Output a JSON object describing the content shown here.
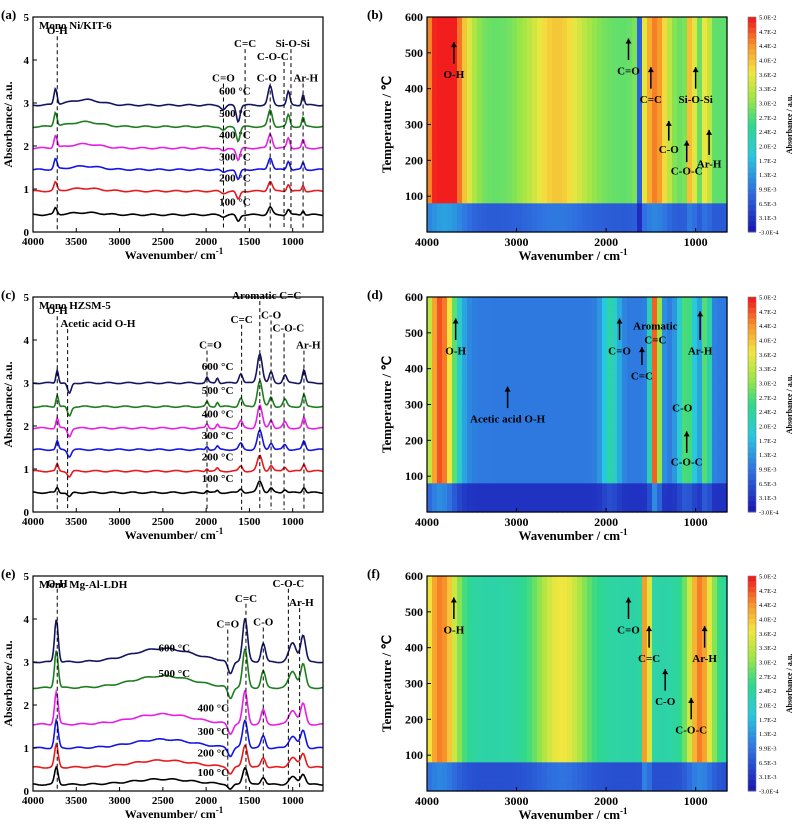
{
  "chart_data": [
    {
      "type": "line",
      "panel_label": "(a)",
      "title": "Mono Ni/KIT-6",
      "xlabel": "Wavenumber/ cm",
      "xlabel_sup": "-1",
      "ylabel": "Absorbance/ a.u.",
      "xlim": [
        4000,
        650
      ],
      "ylim": [
        0,
        5
      ],
      "x_reversed": true,
      "xticks": [
        4000,
        3500,
        3000,
        2500,
        2000,
        1500,
        1000
      ],
      "yticks": [
        0,
        1,
        2,
        3,
        4,
        5
      ],
      "series": [
        {
          "name": "100 °C",
          "color": "#000000",
          "offset": 0.4,
          "label_x": 1850,
          "label_y": 0.62
        },
        {
          "name": "200 °C",
          "color": "#e8191c",
          "offset": 0.95,
          "label_x": 1850,
          "label_y": 1.18
        },
        {
          "name": "300 °C",
          "color": "#1414e6",
          "offset": 1.45,
          "label_x": 1850,
          "label_y": 1.66
        },
        {
          "name": "400 °C",
          "color": "#e61ee6",
          "offset": 1.95,
          "label_x": 1850,
          "label_y": 2.18
        },
        {
          "name": "500 °C",
          "color": "#1e7d1e",
          "offset": 2.45,
          "label_x": 1850,
          "label_y": 2.68
        },
        {
          "name": "600 °C",
          "color": "#14145f",
          "offset": 2.95,
          "label_x": 1850,
          "label_y": 3.2
        }
      ],
      "features": [
        {
          "pos": 3740,
          "h": 0.3,
          "w": 25
        },
        {
          "pos": 3400,
          "h": 0.1,
          "w": 250
        },
        {
          "pos": 1800,
          "h": -0.08,
          "w": 40
        },
        {
          "pos": 1630,
          "h": -0.3,
          "w": 30
        },
        {
          "pos": 1260,
          "h": 0.35,
          "w": 35
        },
        {
          "pos": 1050,
          "h": 0.25,
          "w": 25
        },
        {
          "pos": 880,
          "h": 0.2,
          "w": 20
        }
      ],
      "annotations": [
        {
          "text": "O-H",
          "x": 3720,
          "y": 4.6,
          "line_x": 3720
        },
        {
          "text": "C=O",
          "x": 1800,
          "y": 3.5,
          "line_x": 1800
        },
        {
          "text": "C=C",
          "x": 1550,
          "y": 4.3,
          "line_x": 1550
        },
        {
          "text": "C-O-C",
          "x": 1230,
          "y": 4.0,
          "line_x": 1100
        },
        {
          "text": "C-O",
          "x": 1300,
          "y": 3.5,
          "line_x": 1260
        },
        {
          "text": "Si-O-Si",
          "x": 1000,
          "y": 4.3,
          "line_x": 1020
        },
        {
          "text": "Ar-H",
          "x": 850,
          "y": 3.5,
          "line_x": 880
        }
      ]
    },
    {
      "type": "line",
      "panel_label": "(c)",
      "title": "Mono HZSM-5",
      "xlabel": "Wavenumber/ cm",
      "xlabel_sup": "-1",
      "ylabel": "Absorbance/ a.u.",
      "xlim": [
        4000,
        650
      ],
      "ylim": [
        0,
        5
      ],
      "x_reversed": true,
      "xticks": [
        4000,
        3500,
        3000,
        2500,
        2000,
        1500,
        1000
      ],
      "yticks": [
        0,
        1,
        2,
        3,
        4,
        5
      ],
      "series": [
        {
          "name": "100 °C",
          "color": "#000000",
          "offset": 0.45,
          "label_x": 2050,
          "label_y": 0.7
        },
        {
          "name": "200 °C",
          "color": "#e8191c",
          "offset": 0.95,
          "label_x": 2050,
          "label_y": 1.2
        },
        {
          "name": "300 °C",
          "color": "#1414e6",
          "offset": 1.45,
          "label_x": 2050,
          "label_y": 1.7
        },
        {
          "name": "400 °C",
          "color": "#e61ee6",
          "offset": 1.95,
          "label_x": 2050,
          "label_y": 2.2
        },
        {
          "name": "500 °C",
          "color": "#1e7d1e",
          "offset": 2.45,
          "label_x": 2050,
          "label_y": 2.75
        },
        {
          "name": "600 °C",
          "color": "#14145f",
          "offset": 3.0,
          "label_x": 2050,
          "label_y": 3.3
        }
      ],
      "features": [
        {
          "pos": 3720,
          "h": 0.25,
          "w": 20
        },
        {
          "pos": 3580,
          "h": -0.2,
          "w": 30
        },
        {
          "pos": 1990,
          "h": 0.1,
          "w": 20
        },
        {
          "pos": 1870,
          "h": 0.1,
          "w": 20
        },
        {
          "pos": 1600,
          "h": 0.18,
          "w": 30
        },
        {
          "pos": 1380,
          "h": 0.55,
          "w": 40
        },
        {
          "pos": 1250,
          "h": 0.2,
          "w": 30
        },
        {
          "pos": 1090,
          "h": 0.15,
          "w": 30
        },
        {
          "pos": 870,
          "h": 0.25,
          "w": 25
        }
      ],
      "annotations": [
        {
          "text": "O-H",
          "x": 3720,
          "y": 4.6,
          "line_x": 3720
        },
        {
          "text": "Acetic acid O-H",
          "x": 3250,
          "y": 4.3,
          "line_x": 3600
        },
        {
          "text": "C=O",
          "x": 1950,
          "y": 3.8,
          "line_x": 1990
        },
        {
          "text": "C=C",
          "x": 1590,
          "y": 4.4,
          "line_x": 1590
        },
        {
          "text": "Aromatic C=C",
          "x": 1300,
          "y": 4.95,
          "line_x": 1380
        },
        {
          "text": "C-O",
          "x": 1250,
          "y": 4.5,
          "line_x": 1250
        },
        {
          "text": "C-O-C",
          "x": 1050,
          "y": 4.2,
          "line_x": 1100
        },
        {
          "text": "Ar-H",
          "x": 820,
          "y": 3.8,
          "line_x": 870
        }
      ]
    },
    {
      "type": "line",
      "panel_label": "(e)",
      "title": "Mono Mg-Al-LDH",
      "xlabel": "Wavenumber/ cm",
      "xlabel_sup": "-1",
      "ylabel": "Absorbance/ a.u.",
      "xlim": [
        4000,
        650
      ],
      "ylim": [
        0,
        5
      ],
      "x_reversed": true,
      "xticks": [
        4000,
        3500,
        3000,
        2500,
        2000,
        1500,
        1000
      ],
      "yticks": [
        0,
        1,
        2,
        3,
        4,
        5
      ],
      "series": [
        {
          "name": "100 °C",
          "color": "#000000",
          "offset": 0.15,
          "label_x": 2100,
          "label_y": 0.35
        },
        {
          "name": "200 °C",
          "color": "#e8191c",
          "offset": 0.55,
          "label_x": 2100,
          "label_y": 0.8
        },
        {
          "name": "300 °C",
          "color": "#1414e6",
          "offset": 1.0,
          "label_x": 2100,
          "label_y": 1.3
        },
        {
          "name": "400 °C",
          "color": "#e61ee6",
          "offset": 1.55,
          "label_x": 2100,
          "label_y": 1.85
        },
        {
          "name": "500 °C",
          "color": "#1e7d1e",
          "offset": 2.4,
          "label_x": 2550,
          "label_y": 2.65
        },
        {
          "name": "600 °C",
          "color": "#14145f",
          "offset": 3.0,
          "label_x": 2550,
          "label_y": 3.25
        }
      ],
      "features": [
        {
          "pos": 3730,
          "h": 0.8,
          "w": 30
        },
        {
          "pos": 2500,
          "h": 0.25,
          "w": 500
        },
        {
          "pos": 1720,
          "h": -0.25,
          "w": 40
        },
        {
          "pos": 1550,
          "h": 0.8,
          "w": 40
        },
        {
          "pos": 1340,
          "h": 0.35,
          "w": 35
        },
        {
          "pos": 1000,
          "h": 0.35,
          "w": 60
        },
        {
          "pos": 880,
          "h": 0.5,
          "w": 40
        }
      ],
      "annotations": [
        {
          "text": "O-H",
          "x": 3720,
          "y": 4.75,
          "line_x": 3720
        },
        {
          "text": "C=O",
          "x": 1750,
          "y": 3.8,
          "line_x": 1750
        },
        {
          "text": "C=C",
          "x": 1540,
          "y": 4.4,
          "line_x": 1540
        },
        {
          "text": "C-O",
          "x": 1340,
          "y": 3.85,
          "line_x": 1340
        },
        {
          "text": "C-O-C",
          "x": 1050,
          "y": 4.75,
          "line_x": 1050
        },
        {
          "text": "Ar-H",
          "x": 900,
          "y": 4.3,
          "line_x": 920
        }
      ]
    },
    {
      "type": "heatmap",
      "panel_label": "(b)",
      "xlabel": "Wavenumber / cm",
      "xlabel_sup": "-1",
      "ylabel": "Temperature / ℃",
      "xlim": [
        4000,
        650
      ],
      "ylim": [
        0,
        600
      ],
      "x_reversed": true,
      "xticks": [
        4000,
        3000,
        2000,
        1000
      ],
      "yticks": [
        100,
        200,
        300,
        400,
        500,
        600
      ],
      "colorbar_label": "Absorbance / a.u.",
      "colorbar_ticks": [
        "5.0E-2",
        "4.7E-2",
        "4.4E-2",
        "4.0E-2",
        "3.6E-2",
        "3.3E-2",
        "3.0E-2",
        "2.7E-2",
        "2.4E-2",
        "2.0E-2",
        "1.7E-2",
        "1.3E-2",
        "9.9E-3",
        "6.5E-3",
        "3.1E-3",
        "-3.0E-4"
      ],
      "annotations": [
        {
          "text": "O-H",
          "x": 3700,
          "y": 430,
          "arrow_from": 470,
          "arrow_to": 530
        },
        {
          "text": "C=O",
          "x": 1750,
          "y": 440,
          "arrow_from": 480,
          "arrow_to": 540
        },
        {
          "text": "C=C",
          "x": 1500,
          "y": 360,
          "arrow_from": 400,
          "arrow_to": 460
        },
        {
          "text": "Si-O-Si",
          "x": 1000,
          "y": 360,
          "arrow_from": 400,
          "arrow_to": 460
        },
        {
          "text": "C-O",
          "x": 1300,
          "y": 220,
          "arrow_from": 255,
          "arrow_to": 310
        },
        {
          "text": "Ar-H",
          "x": 850,
          "y": 180,
          "arrow_from": 215,
          "arrow_to": 285
        },
        {
          "text": "C-O-C",
          "x": 1100,
          "y": 160,
          "arrow_from": 195,
          "arrow_to": 255
        }
      ]
    },
    {
      "type": "heatmap",
      "panel_label": "(d)",
      "xlabel": "Wavenumber / cm",
      "xlabel_sup": "-1",
      "ylabel": "Temperature / ℃",
      "xlim": [
        4000,
        650
      ],
      "ylim": [
        0,
        600
      ],
      "x_reversed": true,
      "xticks": [
        4000,
        3000,
        2000,
        1000
      ],
      "yticks": [
        100,
        200,
        300,
        400,
        500,
        600
      ],
      "colorbar_label": "Absorbance / a.u.",
      "colorbar_ticks": [
        "5.0E-2",
        "4.7E-2",
        "4.4E-2",
        "4.0E-2",
        "3.6E-2",
        "3.3E-2",
        "3.0E-2",
        "2.7E-2",
        "2.4E-2",
        "2.0E-2",
        "1.7E-2",
        "1.3E-2",
        "9.9E-3",
        "6.5E-3",
        "3.1E-3",
        "-3.0E-4"
      ],
      "annotations": [
        {
          "text": "O-H",
          "x": 3680,
          "y": 440,
          "arrow_from": 480,
          "arrow_to": 540
        },
        {
          "text": "Acetic acid O-H",
          "x": 3100,
          "y": 250,
          "arrow_from": 290,
          "arrow_to": 350
        },
        {
          "text": "C=O",
          "x": 1850,
          "y": 440,
          "arrow_from": 480,
          "arrow_to": 540
        },
        {
          "text": "C=C",
          "x": 1600,
          "y": 370,
          "arrow_from": 410,
          "arrow_to": 460
        },
        {
          "text": "Aromatic",
          "x": 1450,
          "y": 510,
          "arrow_from": 0,
          "arrow_to": 0
        },
        {
          "text": "C=C",
          "x": 1450,
          "y": 470,
          "arrow_from": 0,
          "arrow_to": 0
        },
        {
          "text": "Ar-H",
          "x": 950,
          "y": 440,
          "arrow_from": 480,
          "arrow_to": 560
        },
        {
          "text": "C-O",
          "x": 1150,
          "y": 280,
          "arrow_from": 0,
          "arrow_to": 0
        },
        {
          "text": "C-O-C",
          "x": 1100,
          "y": 130,
          "arrow_from": 165,
          "arrow_to": 225
        }
      ]
    },
    {
      "type": "heatmap",
      "panel_label": "(f)",
      "xlabel": "Wavenumber / cm",
      "xlabel_sup": "-1",
      "ylabel": "Temperature / ℃",
      "xlim": [
        4000,
        650
      ],
      "ylim": [
        0,
        600
      ],
      "x_reversed": true,
      "xticks": [
        4000,
        3000,
        2000,
        1000
      ],
      "yticks": [
        100,
        200,
        300,
        400,
        500,
        600
      ],
      "colorbar_label": "Absorbance / a.u.",
      "colorbar_ticks": [
        "5.0E-2",
        "4.7E-2",
        "4.4E-2",
        "4.0E-2",
        "3.6E-2",
        "3.3E-2",
        "3.0E-2",
        "2.7E-2",
        "2.4E-2",
        "2.0E-2",
        "1.7E-2",
        "1.3E-2",
        "9.9E-3",
        "6.5E-3",
        "3.1E-3",
        "-3.0E-4"
      ],
      "annotations": [
        {
          "text": "O-H",
          "x": 3700,
          "y": 440,
          "arrow_from": 480,
          "arrow_to": 540
        },
        {
          "text": "C=O",
          "x": 1750,
          "y": 440,
          "arrow_from": 480,
          "arrow_to": 540
        },
        {
          "text": "C=C",
          "x": 1520,
          "y": 360,
          "arrow_from": 400,
          "arrow_to": 460
        },
        {
          "text": "C-O",
          "x": 1340,
          "y": 240,
          "arrow_from": 280,
          "arrow_to": 340
        },
        {
          "text": "Ar-H",
          "x": 900,
          "y": 360,
          "arrow_from": 400,
          "arrow_to": 460
        },
        {
          "text": "C-O-C",
          "x": 1050,
          "y": 160,
          "arrow_from": 200,
          "arrow_to": 260
        }
      ]
    }
  ]
}
